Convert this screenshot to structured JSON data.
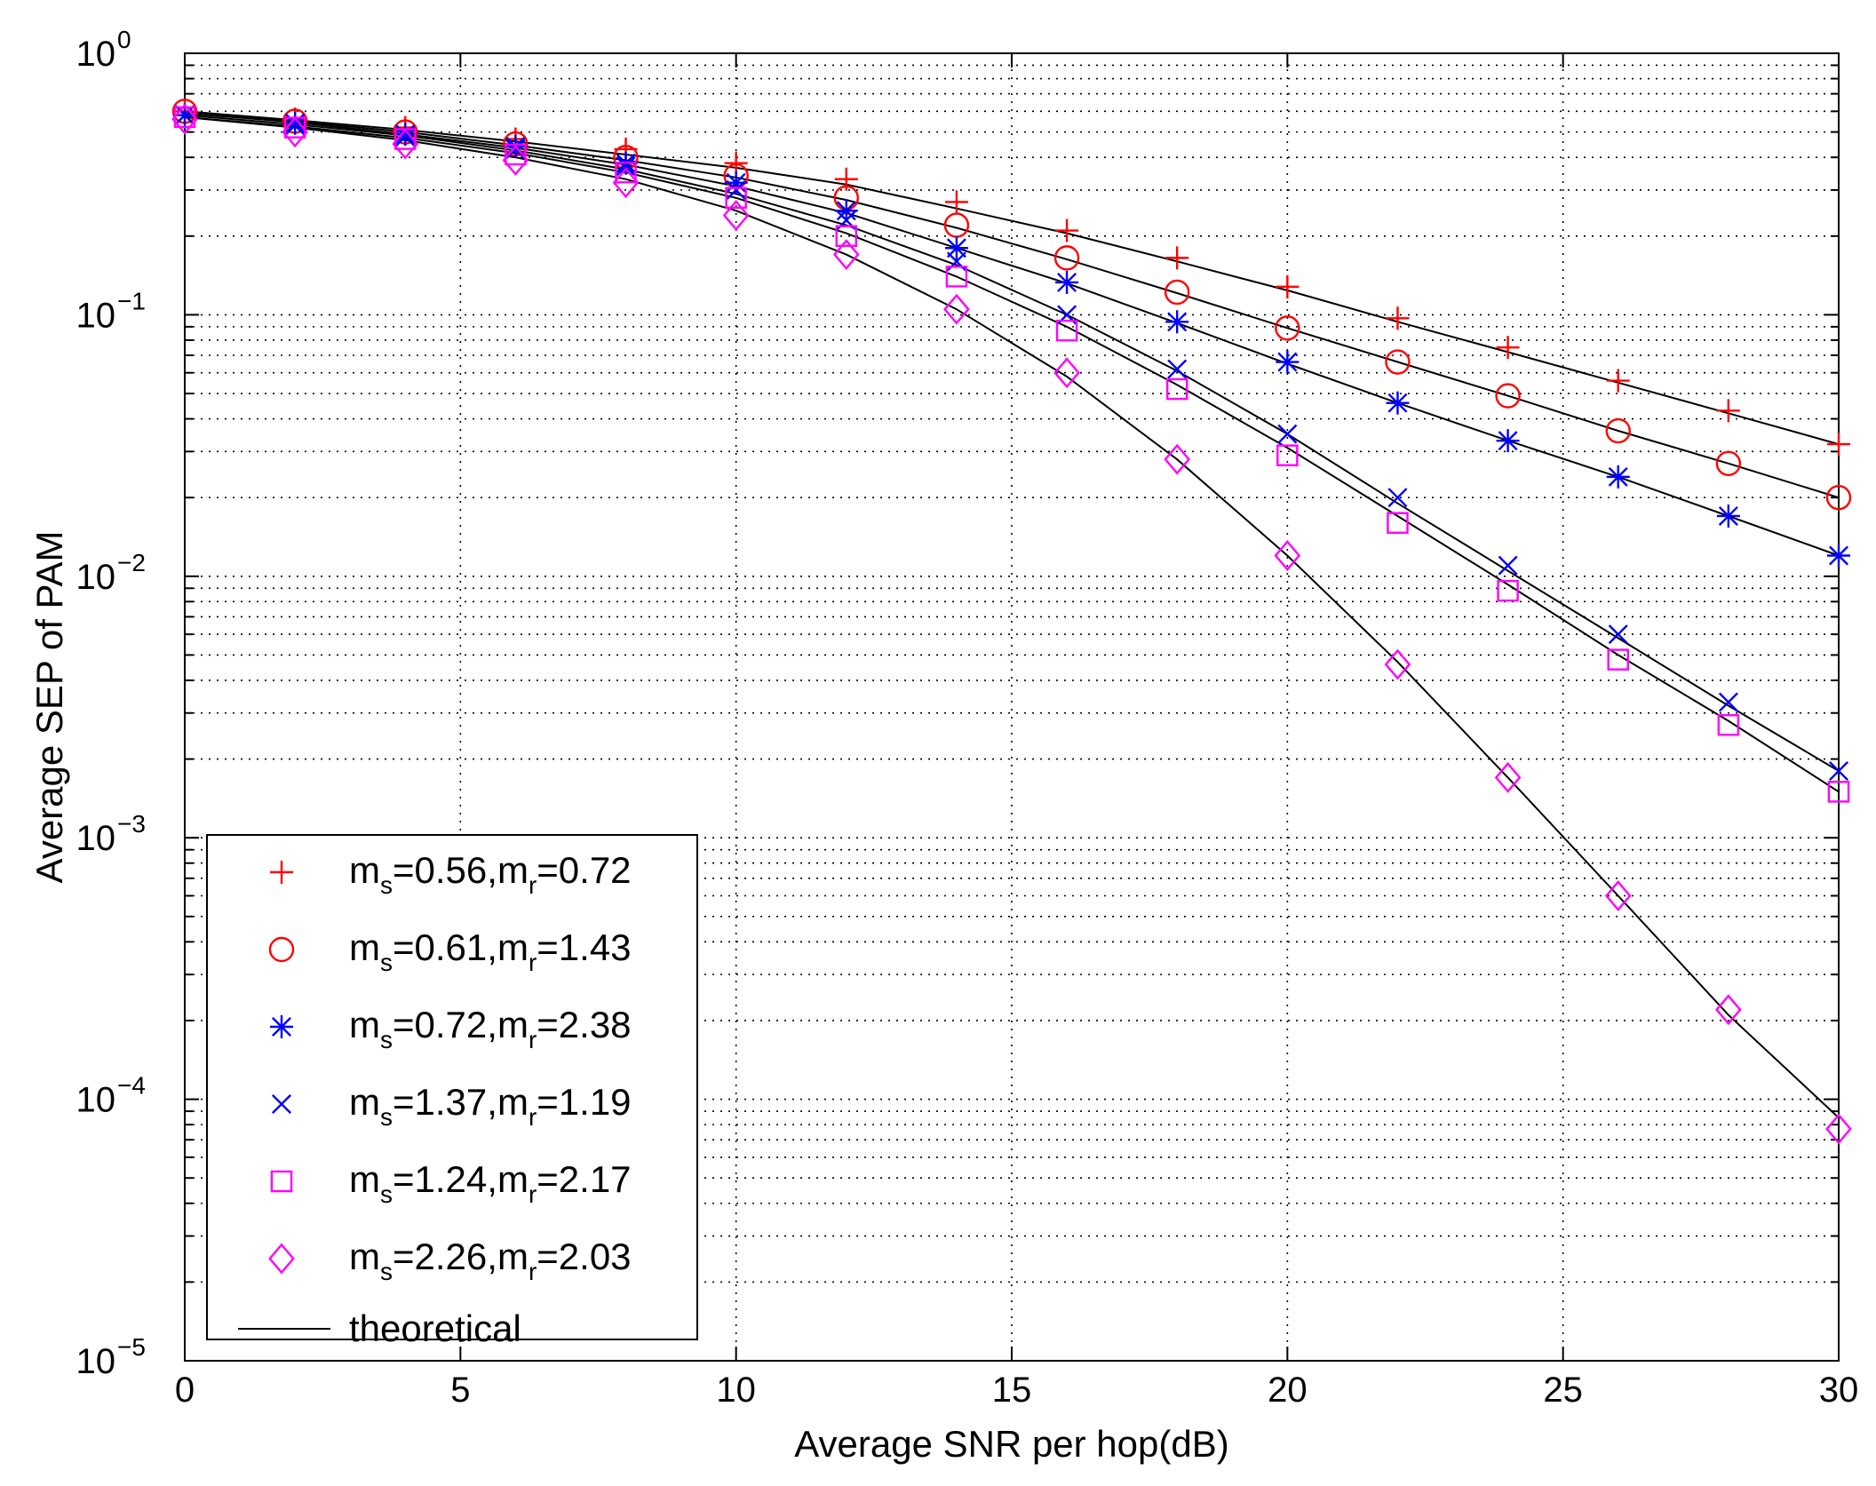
{
  "chart_data": {
    "type": "line",
    "title": "",
    "xlabel": "Average SNR per hop(dB)",
    "ylabel": "Average SEP of PAM",
    "yscale": "log",
    "xlim": [
      0,
      30
    ],
    "ylim": [
      1e-05,
      1
    ],
    "grid": true,
    "legend_position": "bottom-left",
    "x_ticks": [
      {
        "value": 0,
        "label": "0"
      },
      {
        "value": 5,
        "label": "5"
      },
      {
        "value": 10,
        "label": "10"
      },
      {
        "value": 15,
        "label": "15"
      },
      {
        "value": 20,
        "label": "20"
      },
      {
        "value": 25,
        "label": "25"
      },
      {
        "value": 30,
        "label": "30"
      }
    ],
    "y_ticks": [
      {
        "value": 1,
        "base": "10",
        "exp": "0"
      },
      {
        "value": 0.1,
        "base": "10",
        "exp": "−1"
      },
      {
        "value": 0.01,
        "base": "10",
        "exp": "−2"
      },
      {
        "value": 0.001,
        "base": "10",
        "exp": "−3"
      },
      {
        "value": 0.0001,
        "base": "10",
        "exp": "−4"
      },
      {
        "value": 1e-05,
        "base": "10",
        "exp": "−5"
      }
    ],
    "x": [
      0,
      2,
      4,
      6,
      8,
      10,
      12,
      14,
      16,
      18,
      20,
      22,
      24,
      26,
      28,
      30
    ],
    "series": [
      {
        "name": "m_s=0.56,m_r=0.72",
        "ms": "0.56",
        "mr": "0.72",
        "marker": "plus",
        "color": "#ff0000",
        "sim": [
          0.6,
          0.56,
          0.52,
          0.47,
          0.43,
          0.38,
          0.33,
          0.27,
          0.21,
          0.165,
          0.128,
          0.097,
          0.075,
          0.056,
          0.043,
          0.032
        ],
        "theory": [
          0.6,
          0.555,
          0.51,
          0.46,
          0.41,
          0.365,
          0.315,
          0.255,
          0.205,
          0.16,
          0.124,
          0.094,
          0.072,
          0.055,
          0.042,
          0.032
        ]
      },
      {
        "name": "m_s=0.61,m_r=1.43",
        "ms": "0.61",
        "mr": "1.43",
        "marker": "circle",
        "color": "#ff0000",
        "sim": [
          0.6,
          0.55,
          0.5,
          0.45,
          0.4,
          0.34,
          0.28,
          0.22,
          0.165,
          0.122,
          0.089,
          0.066,
          0.049,
          0.036,
          0.027,
          0.02
        ],
        "theory": [
          0.6,
          0.55,
          0.5,
          0.445,
          0.39,
          0.335,
          0.275,
          0.215,
          0.163,
          0.121,
          0.089,
          0.066,
          0.049,
          0.036,
          0.027,
          0.02
        ]
      },
      {
        "name": "m_s=0.72,m_r=2.38",
        "ms": "0.72",
        "mr": "2.38",
        "marker": "asterisk",
        "color": "#0000ff",
        "sim": [
          0.58,
          0.54,
          0.49,
          0.44,
          0.38,
          0.32,
          0.25,
          0.18,
          0.133,
          0.094,
          0.066,
          0.046,
          0.033,
          0.024,
          0.017,
          0.012
        ],
        "theory": [
          0.59,
          0.545,
          0.49,
          0.435,
          0.375,
          0.31,
          0.245,
          0.18,
          0.132,
          0.093,
          0.065,
          0.046,
          0.033,
          0.024,
          0.017,
          0.012
        ]
      },
      {
        "name": "m_s=1.37,m_r=1.19",
        "ms": "1.37",
        "mr": "1.19",
        "marker": "x",
        "color": "#0000ff",
        "sim": [
          0.58,
          0.53,
          0.48,
          0.43,
          0.37,
          0.3,
          0.23,
          0.16,
          0.1,
          0.062,
          0.035,
          0.02,
          0.011,
          0.006,
          0.0033,
          0.0018
        ],
        "theory": [
          0.58,
          0.535,
          0.485,
          0.425,
          0.36,
          0.29,
          0.22,
          0.155,
          0.1,
          0.061,
          0.035,
          0.019,
          0.0105,
          0.0058,
          0.0032,
          0.0018
        ]
      },
      {
        "name": "m_s=1.24,m_r=2.17",
        "ms": "1.24",
        "mr": "2.17",
        "marker": "square",
        "color": "#ff00ff",
        "sim": [
          0.57,
          0.52,
          0.47,
          0.41,
          0.35,
          0.28,
          0.2,
          0.14,
          0.087,
          0.052,
          0.029,
          0.016,
          0.0088,
          0.0048,
          0.0027,
          0.0015
        ],
        "theory": [
          0.57,
          0.525,
          0.475,
          0.415,
          0.35,
          0.28,
          0.205,
          0.14,
          0.09,
          0.054,
          0.031,
          0.017,
          0.0093,
          0.005,
          0.0028,
          0.0015
        ]
      },
      {
        "name": "m_s=2.26,m_r=2.03",
        "ms": "2.26",
        "mr": "2.03",
        "marker": "diamond",
        "color": "#ff00ff",
        "sim": [
          0.56,
          0.5,
          0.45,
          0.39,
          0.32,
          0.24,
          0.17,
          0.105,
          0.06,
          0.028,
          0.012,
          0.0046,
          0.0017,
          0.0006,
          0.00022,
          7.7e-05
        ],
        "theory": [
          0.57,
          0.52,
          0.465,
          0.4,
          0.33,
          0.25,
          0.17,
          0.105,
          0.058,
          0.028,
          0.012,
          0.0047,
          0.0017,
          0.0006,
          0.00021,
          8.5e-05
        ]
      }
    ],
    "theoretical_label": "theoretical"
  }
}
